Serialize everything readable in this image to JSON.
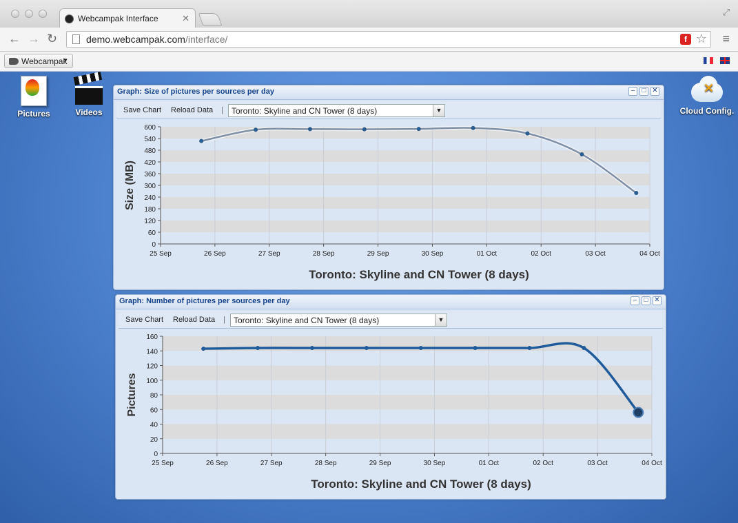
{
  "browser": {
    "tab_title": "Webcampak Interface",
    "tab_close": "✕",
    "url_host": "demo.webcampak.com",
    "url_path": "/interface/",
    "bookmark_menu": "Webcampak",
    "flash_icon_text": "f"
  },
  "desktop": {
    "icons": [
      {
        "label": "Pictures",
        "icon": "pictures-icon"
      },
      {
        "label": "Videos",
        "icon": "clapperboard-icon"
      },
      {
        "label": "Cloud Config.",
        "icon": "cloud-config-icon"
      }
    ]
  },
  "panels": [
    {
      "title": "Graph: Size of pictures per sources per day",
      "save_label": "Save Chart",
      "reload_label": "Reload Data",
      "separator": "|",
      "source_selected": "Toronto: Skyline and CN Tower (8 days)"
    },
    {
      "title": "Graph: Number of pictures per sources per day",
      "save_label": "Save Chart",
      "reload_label": "Reload Data",
      "separator": "|",
      "source_selected": "Toronto: Skyline and CN Tower (8 days)"
    }
  ],
  "chart_data": [
    {
      "type": "line",
      "title": "Toronto: Skyline and CN Tower (8 days)",
      "ylabel": "Size (MB)",
      "xlabel": "",
      "x_ticks": [
        "25 Sep",
        "26 Sep",
        "27 Sep",
        "28 Sep",
        "29 Sep",
        "30 Sep",
        "01 Oct",
        "02 Oct",
        "03 Oct",
        "04 Oct"
      ],
      "y_ticks": [
        0,
        60,
        120,
        180,
        240,
        300,
        360,
        420,
        480,
        540,
        600
      ],
      "ylim": [
        0,
        600
      ],
      "x": [
        "2013-09-25 18:00",
        "2013-09-26 18:00",
        "2013-09-27 18:00",
        "2013-09-28 18:00",
        "2013-09-29 18:00",
        "2013-09-30 18:00",
        "2013-10-01 18:00",
        "2013-10-02 18:00",
        "2013-10-03 18:00"
      ],
      "values": [
        527,
        585,
        588,
        587,
        589,
        594,
        566,
        459,
        261
      ],
      "color": "#7f8fa6",
      "point_color": "#2a5d8f",
      "grid": true
    },
    {
      "type": "line",
      "title": "Toronto: Skyline and CN Tower (8 days)",
      "ylabel": "Pictures",
      "xlabel": "",
      "x_ticks": [
        "25 Sep",
        "26 Sep",
        "27 Sep",
        "28 Sep",
        "29 Sep",
        "30 Sep",
        "01 Oct",
        "02 Oct",
        "03 Oct",
        "04 Oct"
      ],
      "y_ticks": [
        0,
        20,
        40,
        60,
        80,
        100,
        120,
        140,
        160
      ],
      "ylim": [
        0,
        160
      ],
      "x": [
        "2013-09-25 18:00",
        "2013-09-26 18:00",
        "2013-09-27 18:00",
        "2013-09-28 18:00",
        "2013-09-29 18:00",
        "2013-09-30 18:00",
        "2013-10-01 18:00",
        "2013-10-02 18:00",
        "2013-10-03 18:00"
      ],
      "values": [
        143,
        144,
        144,
        144,
        144,
        144,
        144,
        144,
        56
      ],
      "color": "#1f5b9a",
      "point_color": "#1f5b9a",
      "grid": true
    }
  ]
}
